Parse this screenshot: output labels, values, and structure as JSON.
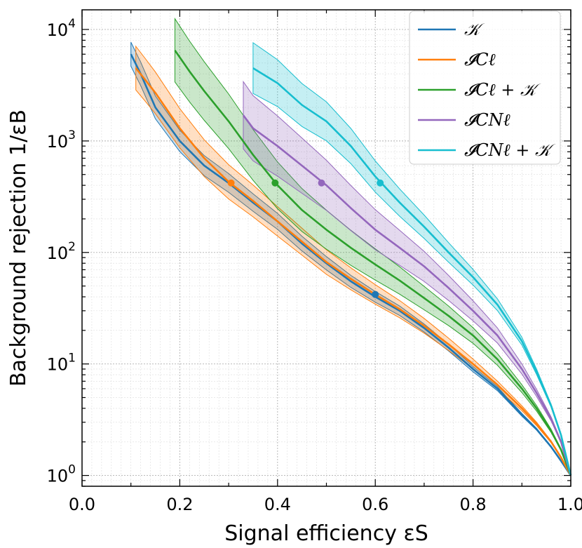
{
  "chart_data": {
    "type": "line",
    "xlabel": "Signal efficiency εS",
    "ylabel": "Background rejection 1/εB",
    "xlim": [
      0.0,
      1.0
    ],
    "ylim": [
      0.8,
      15000
    ],
    "yscale": "log",
    "grid": true,
    "legend": "top-right",
    "x_ticks": [
      "0.0",
      "0.2",
      "0.4",
      "0.6",
      "0.8",
      "1.0"
    ],
    "x_tick_values": [
      0.0,
      0.2,
      0.4,
      0.6,
      0.8,
      1.0
    ],
    "y_ticks": [
      {
        "base": "10",
        "exp": "0",
        "value": 1
      },
      {
        "base": "10",
        "exp": "1",
        "value": 10
      },
      {
        "base": "10",
        "exp": "2",
        "value": 100
      },
      {
        "base": "10",
        "exp": "3",
        "value": 1000
      },
      {
        "base": "10",
        "exp": "4",
        "value": 10000
      }
    ],
    "series": [
      {
        "name": "𝒦",
        "color": "#1f77b4",
        "x": [
          0.1,
          0.12,
          0.15,
          0.2,
          0.25,
          0.3,
          0.35,
          0.4,
          0.45,
          0.5,
          0.55,
          0.6,
          0.65,
          0.7,
          0.75,
          0.8,
          0.85,
          0.9,
          0.93,
          0.96,
          0.98,
          1.0
        ],
        "y": [
          6000,
          4000,
          2000,
          1000,
          600,
          420,
          280,
          190,
          120,
          80,
          55,
          40,
          30,
          21,
          14,
          9,
          6,
          3.5,
          2.6,
          1.8,
          1.35,
          1
        ],
        "band": 0.12,
        "marker": {
          "x": 0.6,
          "y": 42
        }
      },
      {
        "name": "𝓘Cℓ",
        "color": "#ff7f0e",
        "x": [
          0.11,
          0.13,
          0.15,
          0.2,
          0.25,
          0.3,
          0.35,
          0.4,
          0.45,
          0.5,
          0.55,
          0.6,
          0.65,
          0.7,
          0.75,
          0.8,
          0.85,
          0.9,
          0.93,
          0.96,
          0.98,
          1.0
        ],
        "y": [
          4500,
          3500,
          2700,
          1300,
          700,
          430,
          290,
          190,
          125,
          82,
          58,
          42,
          31,
          22,
          15,
          10,
          6.5,
          4,
          2.9,
          2,
          1.45,
          1
        ],
        "band": 0.22,
        "marker": {
          "x": 0.305,
          "y": 420
        }
      },
      {
        "name": "𝓘Cℓ + 𝒦",
        "color": "#2ca02c",
        "x": [
          0.19,
          0.22,
          0.25,
          0.3,
          0.35,
          0.4,
          0.45,
          0.5,
          0.55,
          0.6,
          0.65,
          0.7,
          0.75,
          0.8,
          0.85,
          0.9,
          0.93,
          0.96,
          0.98,
          1.0
        ],
        "y": [
          6500,
          4200,
          2800,
          1500,
          750,
          400,
          240,
          160,
          110,
          78,
          56,
          39,
          27,
          18,
          11,
          6,
          4,
          2.5,
          1.7,
          1
        ],
        "band": 0.35,
        "marker": {
          "x": 0.395,
          "y": 420
        }
      },
      {
        "name": "𝓘CNℓ",
        "color": "#9467bd",
        "x": [
          0.33,
          0.35,
          0.4,
          0.45,
          0.5,
          0.55,
          0.6,
          0.65,
          0.7,
          0.75,
          0.8,
          0.85,
          0.9,
          0.93,
          0.96,
          0.98,
          1.0
        ],
        "y": [
          1700,
          1300,
          900,
          600,
          400,
          250,
          160,
          110,
          75,
          48,
          30,
          18,
          9,
          5.5,
          3.2,
          2,
          1
        ],
        "band": 0.45,
        "marker": {
          "x": 0.49,
          "y": 420
        }
      },
      {
        "name": "𝓘CNℓ + 𝒦",
        "color": "#17becf",
        "x": [
          0.35,
          0.4,
          0.45,
          0.5,
          0.55,
          0.6,
          0.65,
          0.7,
          0.75,
          0.8,
          0.85,
          0.9,
          0.93,
          0.96,
          0.98,
          1.0
        ],
        "y": [
          4500,
          3300,
          2100,
          1500,
          900,
          480,
          280,
          170,
          100,
          60,
          34,
          16,
          8.5,
          4.2,
          2.3,
          1
        ],
        "band": 0.35,
        "marker": {
          "x": 0.61,
          "y": 420
        }
      }
    ]
  }
}
